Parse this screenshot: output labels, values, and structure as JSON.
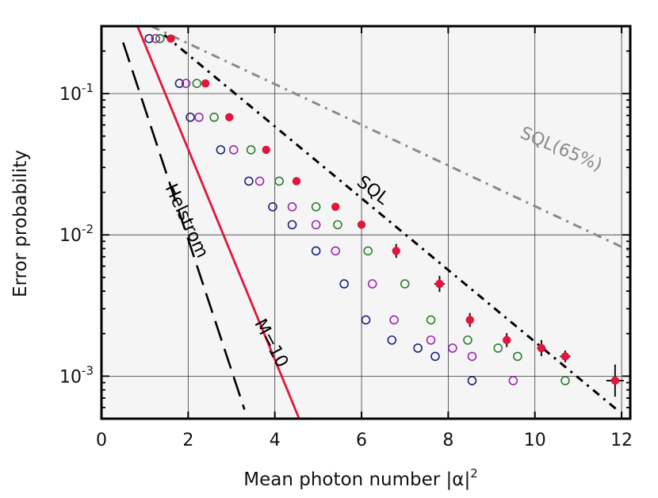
{
  "chart_data": {
    "type": "scatter",
    "title": "",
    "xlabel": "Mean photon number |α|",
    "xlabel_sup": "2",
    "ylabel": "Error probability",
    "xlim": [
      0,
      12.2
    ],
    "ylim": [
      0.0005,
      0.3
    ],
    "yscale": "log",
    "grid": true,
    "x_ticks": [
      {
        "value": 0,
        "label": "0"
      },
      {
        "value": 2,
        "label": "2"
      },
      {
        "value": 4,
        "label": "4"
      },
      {
        "value": 6,
        "label": "6"
      },
      {
        "value": 8,
        "label": "8"
      },
      {
        "value": 10,
        "label": "10"
      },
      {
        "value": 12,
        "label": "12"
      }
    ],
    "y_ticks": [
      {
        "value": 0.1,
        "base": "10",
        "exp": "-1"
      },
      {
        "value": 0.01,
        "base": "10",
        "exp": "-2"
      },
      {
        "value": 0.001,
        "base": "10",
        "exp": "-3"
      }
    ],
    "colors": {
      "blue": "#1a237e",
      "magenta": "#9c27b0",
      "green": "#2e7d32",
      "red": "#e0163c",
      "helstrom": "#000000",
      "sql": "#000000",
      "sql65": "#8a8a8a",
      "background": "#f5f5f5"
    },
    "series": [
      {
        "style": "open-blue",
        "x": [
          1.1,
          1.8,
          2.05,
          2.75,
          3.4,
          3.95,
          4.4,
          4.95,
          5.6,
          6.1,
          6.7,
          7.3,
          7.7,
          8.55
        ],
        "y": [
          0.245,
          0.118,
          0.068,
          0.04,
          0.024,
          0.0158,
          0.0118,
          0.0077,
          0.0045,
          0.0025,
          0.0018,
          0.00158,
          0.00138,
          0.00093
        ]
      },
      {
        "style": "open-magenta",
        "x": [
          1.25,
          1.95,
          2.25,
          3.05,
          3.65,
          4.4,
          4.95,
          5.4,
          6.25,
          6.75,
          7.6,
          8.1,
          8.55,
          9.5
        ],
        "y": [
          0.245,
          0.118,
          0.068,
          0.04,
          0.024,
          0.0158,
          0.0118,
          0.0077,
          0.0045,
          0.0025,
          0.0018,
          0.00158,
          0.00138,
          0.00093
        ]
      },
      {
        "style": "open-green",
        "x": [
          1.35,
          2.2,
          2.6,
          3.45,
          4.1,
          4.95,
          5.45,
          6.15,
          7.0,
          7.6,
          8.45,
          9.15,
          9.6,
          10.7
        ],
        "y": [
          0.245,
          0.118,
          0.068,
          0.04,
          0.024,
          0.0158,
          0.0118,
          0.0077,
          0.0045,
          0.0025,
          0.0018,
          0.00158,
          0.00138,
          0.00093
        ]
      },
      {
        "style": "filled-red",
        "x": [
          1.6,
          2.4,
          2.95,
          3.8,
          4.5,
          5.4,
          6.0,
          6.8,
          7.8,
          8.5,
          9.35,
          10.15,
          10.7,
          11.85
        ],
        "y": [
          0.245,
          0.118,
          0.068,
          0.04,
          0.024,
          0.0158,
          0.0118,
          0.0077,
          0.0045,
          0.0025,
          0.0018,
          0.00158,
          0.00138,
          0.00093
        ],
        "x_err": [
          0,
          0,
          0,
          0,
          0,
          0,
          0,
          0.05,
          0.12,
          0.07,
          0.07,
          0.1,
          0.12,
          0.2
        ],
        "y_err_factor": [
          1,
          1,
          1,
          1,
          1,
          1,
          1,
          1.12,
          1.14,
          1.12,
          1.12,
          1.14,
          1.1,
          1.3
        ]
      }
    ],
    "curves": [
      {
        "name": "Helstrom",
        "style": "dashed-black",
        "x": [
          0.5,
          3.3
        ],
        "y": [
          0.23,
          0.00058
        ]
      },
      {
        "name": "M=10",
        "style": "solid-red",
        "x": [
          0.83,
          4.55
        ],
        "y": [
          0.3,
          0.00051
        ]
      },
      {
        "name": "SQL",
        "style": "dashdot-black",
        "x": [
          1.45,
          11.95
        ],
        "y": [
          0.26,
          0.00056
        ]
      },
      {
        "name": "SQL(65%)",
        "style": "dashdot-gray",
        "x": [
          1.15,
          12.2
        ],
        "y": [
          0.3,
          0.0077
        ]
      }
    ],
    "annotations": [
      {
        "text": "Helstrom",
        "near_x": 1.95,
        "near_y": 0.0125,
        "angle": 65
      },
      {
        "text": "M=10",
        "near_x": 3.9,
        "near_y": 0.0017,
        "angle": 62
      },
      {
        "text": "SQL",
        "near_x": 6.25,
        "near_y": 0.0205,
        "angle": 38
      },
      {
        "text": "SQL(65%)",
        "near_x": 10.6,
        "near_y": 0.04,
        "angle": 23
      }
    ]
  }
}
